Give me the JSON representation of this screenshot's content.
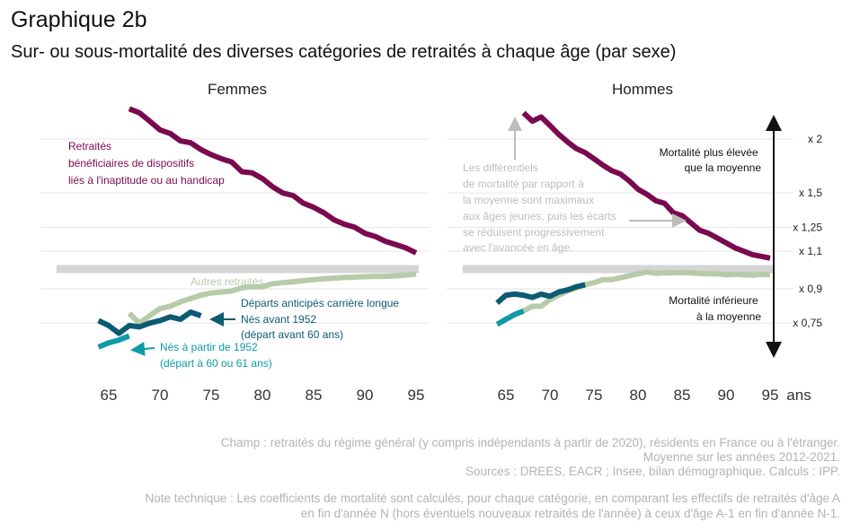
{
  "title": "Graphique 2b",
  "subtitle": "Sur- ou sous-mortalité des diverses catégories de retraités à chaque âge (par sexe)",
  "colors": {
    "retraites_handicap": "#7a0a4f",
    "autres_retraites": "#b8cba8",
    "nes_avant_1952": "#0d5a73",
    "nes_a_partir_1952": "#0f9aa7",
    "reference_band": "#d4d4d4",
    "gridline": "#e6e6e6",
    "annotation_grey": "#bdbdbd"
  },
  "chart_data": {
    "type": "line",
    "x_unit": "ans",
    "x_ticks": [
      65,
      70,
      75,
      80,
      85,
      90,
      95
    ],
    "y_scale": "log",
    "y_ticks": [
      {
        "value": 2,
        "label": "x 2"
      },
      {
        "value": 1.5,
        "label": "x 1,5"
      },
      {
        "value": 1.25,
        "label": "x 1,25"
      },
      {
        "value": 1.1,
        "label": "x 1,1"
      },
      {
        "value": 0.9,
        "label": "x 0,9"
      },
      {
        "value": 0.75,
        "label": "x 0,75"
      }
    ],
    "reference_line": 1,
    "panels": [
      {
        "name": "Femmes",
        "series": [
          {
            "key": "handicap",
            "x": [
              67,
              68,
              69,
              70,
              71,
              72,
              73,
              74,
              75,
              76,
              77,
              78,
              79,
              80,
              81,
              82,
              83,
              84,
              85,
              86,
              87,
              88,
              89,
              90,
              91,
              92,
              93,
              94,
              95
            ],
            "values": [
              2.35,
              2.3,
              2.2,
              2.1,
              2.06,
              1.98,
              1.96,
              1.89,
              1.84,
              1.8,
              1.77,
              1.68,
              1.67,
              1.62,
              1.55,
              1.5,
              1.48,
              1.42,
              1.39,
              1.35,
              1.3,
              1.27,
              1.25,
              1.21,
              1.19,
              1.16,
              1.14,
              1.12,
              1.09
            ]
          },
          {
            "key": "autres",
            "x": [
              67,
              68,
              69,
              70,
              71,
              72,
              73,
              74,
              75,
              76,
              77,
              78,
              79,
              80,
              81,
              82,
              83,
              84,
              85,
              86,
              87,
              88,
              89,
              90,
              91,
              92,
              93,
              94,
              95
            ],
            "values": [
              0.79,
              0.75,
              0.78,
              0.81,
              0.82,
              0.84,
              0.855,
              0.87,
              0.88,
              0.885,
              0.89,
              0.905,
              0.91,
              0.91,
              0.925,
              0.93,
              0.935,
              0.94,
              0.945,
              0.95,
              0.953,
              0.956,
              0.958,
              0.96,
              0.962,
              0.962,
              0.965,
              0.968,
              0.975
            ]
          },
          {
            "key": "avant1952",
            "x": [
              64,
              65,
              66,
              67,
              68,
              69,
              70,
              71,
              72,
              73,
              74
            ],
            "values": [
              0.76,
              0.74,
              0.71,
              0.74,
              0.735,
              0.75,
              0.76,
              0.775,
              0.765,
              0.795,
              0.78
            ]
          },
          {
            "key": "apres1952",
            "x": [
              64,
              65,
              66,
              67
            ],
            "values": [
              0.66,
              0.675,
              0.685,
              0.7
            ]
          }
        ]
      },
      {
        "name": "Hommes",
        "series": [
          {
            "key": "handicap",
            "x": [
              67,
              68,
              69,
              70,
              71,
              72,
              73,
              74,
              75,
              76,
              77,
              78,
              79,
              80,
              81,
              82,
              83,
              84,
              85,
              86,
              87,
              88,
              89,
              90,
              91,
              92,
              93,
              94,
              95
            ],
            "values": [
              2.3,
              2.2,
              2.25,
              2.15,
              2.05,
              1.97,
              1.9,
              1.86,
              1.8,
              1.74,
              1.69,
              1.66,
              1.6,
              1.53,
              1.49,
              1.44,
              1.42,
              1.35,
              1.33,
              1.28,
              1.23,
              1.21,
              1.18,
              1.15,
              1.12,
              1.1,
              1.08,
              1.07,
              1.06
            ]
          },
          {
            "key": "autres",
            "x": [
              67,
              68,
              69,
              70,
              71,
              72,
              73,
              74,
              75,
              76,
              77,
              78,
              79,
              80,
              81,
              82,
              83,
              84,
              85,
              86,
              87,
              88,
              89,
              90,
              91,
              92,
              93,
              94,
              95
            ],
            "values": [
              0.8,
              0.82,
              0.82,
              0.85,
              0.87,
              0.89,
              0.905,
              0.92,
              0.93,
              0.945,
              0.945,
              0.955,
              0.965,
              0.975,
              0.985,
              0.978,
              0.98,
              0.98,
              0.982,
              0.98,
              0.977,
              0.975,
              0.975,
              0.97,
              0.973,
              0.97,
              0.968,
              0.972,
              0.97
            ]
          },
          {
            "key": "avant1952",
            "x": [
              64,
              65,
              66,
              67,
              68,
              69,
              70,
              71,
              72,
              73,
              74
            ],
            "values": [
              0.835,
              0.87,
              0.875,
              0.87,
              0.86,
              0.875,
              0.865,
              0.885,
              0.895,
              0.91,
              0.92
            ]
          },
          {
            "key": "apres1952",
            "x": [
              64,
              65,
              66,
              67
            ],
            "values": [
              0.745,
              0.765,
              0.785,
              0.8
            ]
          }
        ]
      }
    ],
    "annotations": {
      "handicap_label": [
        "Retraités",
        "bénéficiaires de dispositifs",
        "liés à l'inaptitude ou au handicap"
      ],
      "autres_label": "Autres retraités",
      "carriere_longue_label": "Départs anticipés carrière longue",
      "avant1952_label": [
        "Nés avant 1952",
        "(départ avant 60 ans)"
      ],
      "apres1952_label": [
        "Nés à partir de 1952",
        "(départ à 60 ou 61 ans)"
      ],
      "differentials_note": [
        "Les différentiels",
        "de mortalité par rapport à",
        "la moyenne sont maximaux",
        "aux âges jeunes, puis les écarts",
        "se réduisent progressivement",
        "avec l'avancée en âge."
      ],
      "plus_elevee": [
        "Mortalité plus élevée",
        "que la moyenne"
      ],
      "inferieure": [
        "Mortalité inférieure",
        "à la moyenne"
      ]
    }
  },
  "notes": {
    "champ": "Champ : retraités du régime général (y compris indépendants à partir de 2020), résidents en France ou à l'étranger.",
    "periode": "Moyenne sur les années 2012-2021.",
    "sources": "Sources : DREES, EACR ; Insee, bilan démographique. Calculs : IPP.",
    "technique_1": "Note technique : Les coefficients de mortalité sont calculés, pour chaque catégorie, en comparant les effectifs de retraités d'âge A",
    "technique_2": "en fin d'année N (hors éventuels nouveaux retraités de l'année) à ceux d'âge A-1 en fin d'année N-1."
  }
}
